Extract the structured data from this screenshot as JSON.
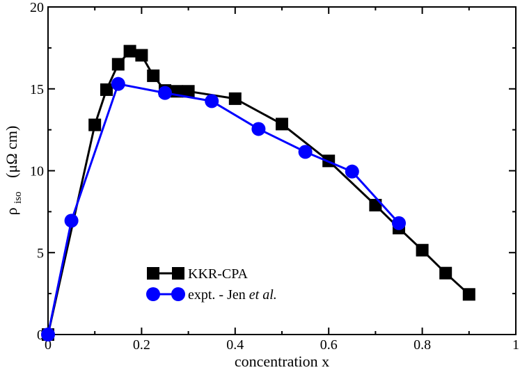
{
  "chart_data": {
    "type": "line",
    "title": "",
    "xlabel": "concentration x",
    "ylabel": {
      "symbol": "ρ",
      "subscript": "iso",
      "units": "(μΩ cm)"
    },
    "xlim": [
      0,
      1
    ],
    "ylim": [
      0,
      20
    ],
    "xticks": [
      0,
      0.2,
      0.4,
      0.6,
      0.8,
      1
    ],
    "xtick_labels": [
      "0",
      "0.2",
      "0.4",
      "0.6",
      "0.8",
      "1"
    ],
    "yticks": [
      0,
      5,
      10,
      15,
      20
    ],
    "ytick_labels": [
      "0",
      "5",
      "10",
      "15",
      "20"
    ],
    "grid": false,
    "legend_position": "bottom-left",
    "series": [
      {
        "name": "KKR-CPA",
        "color": "#000000",
        "marker": "square",
        "x": [
          0,
          0.1,
          0.125,
          0.15,
          0.175,
          0.2,
          0.225,
          0.25,
          0.275,
          0.3,
          0.4,
          0.5,
          0.6,
          0.7,
          0.75,
          0.8,
          0.85,
          0.9
        ],
        "y": [
          0,
          12.8,
          14.95,
          16.5,
          17.3,
          17.05,
          15.8,
          14.9,
          14.85,
          14.85,
          14.4,
          12.85,
          10.6,
          7.9,
          6.5,
          5.15,
          3.75,
          2.45
        ]
      },
      {
        "name": "expt. - Jen",
        "name_suffix": "et al.",
        "color": "#0000ff",
        "marker": "circle",
        "x": [
          0,
          0.05,
          0.15,
          0.25,
          0.35,
          0.45,
          0.55,
          0.65,
          0.75
        ],
        "y": [
          0,
          6.95,
          15.3,
          14.75,
          14.25,
          12.55,
          11.15,
          9.95,
          6.8
        ]
      }
    ]
  }
}
